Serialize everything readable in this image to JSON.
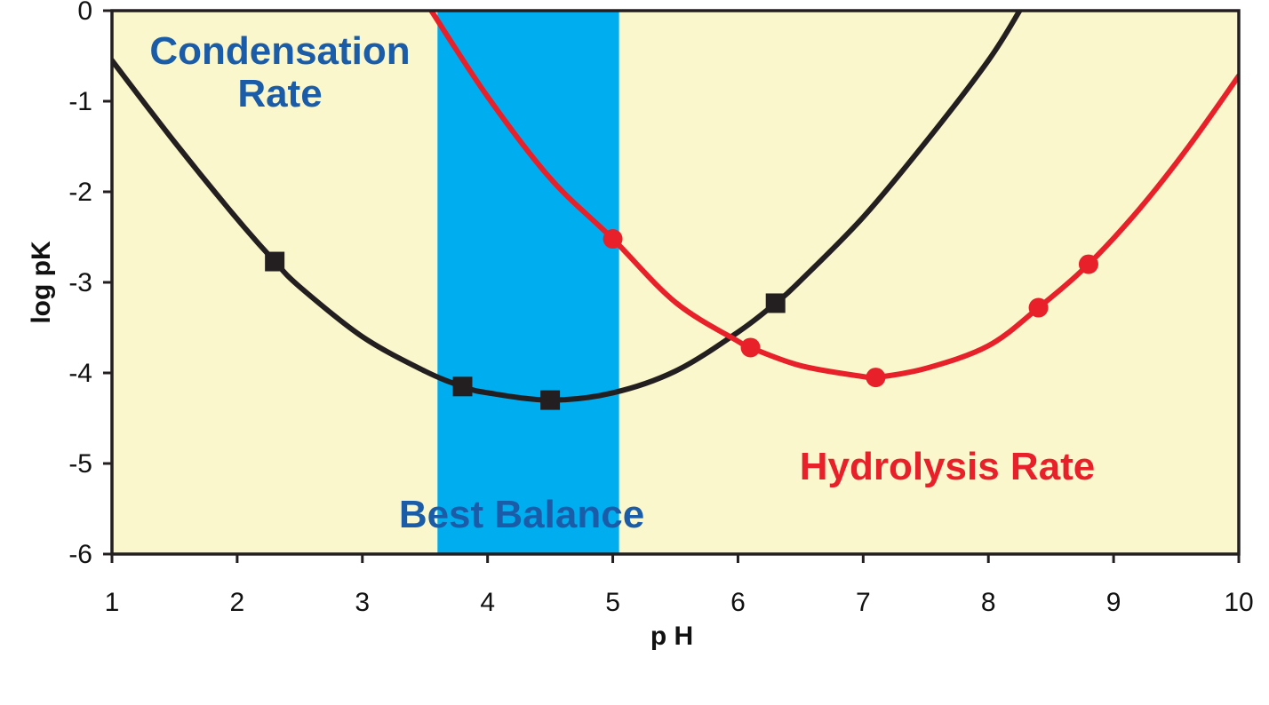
{
  "chart_data": {
    "type": "line",
    "xlabel": "p H",
    "ylabel": "log pK",
    "xlim": [
      1,
      10
    ],
    "ylim": [
      -6,
      0
    ],
    "x_ticks": [
      "1",
      "2",
      "3",
      "4",
      "5",
      "6",
      "7",
      "8",
      "9",
      "10"
    ],
    "y_ticks": [
      "0",
      "-1",
      "-2",
      "-3",
      "-4",
      "-5",
      "-6"
    ],
    "grid": false,
    "legend": "none",
    "background_color": "#FAF7CC",
    "band": {
      "x_start": 3.6,
      "x_end": 5.05,
      "color": "#00AEEF"
    },
    "annotations": {
      "condensation_line1": "Condensation",
      "condensation_line2": "Rate",
      "hydrolysis": "Hydrolysis Rate",
      "balance": "Best Balance"
    },
    "series": [
      {
        "color": "#231F20",
        "marker": "square",
        "curve_x": [
          1.0,
          1.5,
          2.0,
          2.3,
          2.5,
          3.0,
          3.5,
          3.8,
          4.0,
          4.5,
          5.0,
          5.5,
          6.0,
          6.3,
          6.5,
          7.0,
          7.5,
          8.0,
          8.25
        ],
        "curve_y": [
          -0.55,
          -1.45,
          -2.3,
          -2.77,
          -3.05,
          -3.6,
          -3.98,
          -4.15,
          -4.22,
          -4.3,
          -4.22,
          -3.98,
          -3.55,
          -3.23,
          -2.98,
          -2.28,
          -1.45,
          -0.55,
          0.0
        ],
        "points_x": [
          2.3,
          3.8,
          4.5,
          6.3
        ],
        "points_y": [
          -2.77,
          -4.15,
          -4.3,
          -3.23
        ]
      },
      {
        "color": "#E8202A",
        "marker": "circle",
        "curve_x": [
          3.55,
          4.0,
          4.5,
          5.0,
          5.5,
          6.0,
          6.1,
          6.5,
          7.0,
          7.1,
          7.5,
          8.0,
          8.4,
          8.8,
          9.2,
          9.6,
          10.0
        ],
        "curve_y": [
          0.0,
          -0.95,
          -1.85,
          -2.52,
          -3.22,
          -3.65,
          -3.72,
          -3.92,
          -4.04,
          -4.05,
          -3.95,
          -3.7,
          -3.28,
          -2.8,
          -2.2,
          -1.5,
          -0.72
        ],
        "points_x": [
          5.0,
          6.1,
          7.1,
          8.4,
          8.8
        ],
        "points_y": [
          -2.52,
          -3.72,
          -4.05,
          -3.28,
          -2.8
        ]
      }
    ]
  }
}
